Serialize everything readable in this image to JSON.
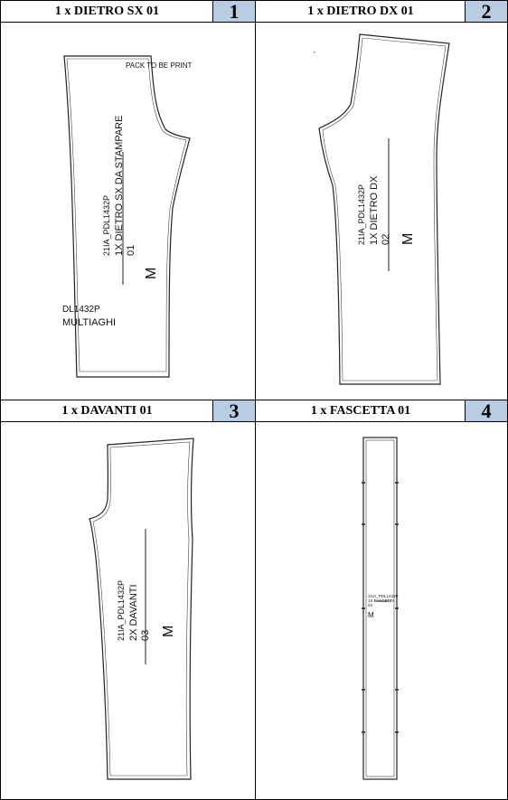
{
  "colors": {
    "header_num_bg": "#b8cce4",
    "line": "#222222",
    "border": "#000000"
  },
  "panels": [
    {
      "title": "1 x DIETRO SX 01",
      "number": "1",
      "note": "PACK TO BE PRINT",
      "label_lines": [
        "21IA_PDL1432P",
        "1X DIETRO SX DA STAMPARE",
        "01"
      ],
      "size": "M",
      "extra_code": "DL1432P",
      "extra_text": "MULTIAGHI"
    },
    {
      "title": "1 x DIETRO DX 01",
      "number": "2",
      "label_lines": [
        "21IA_PDL1432P",
        "1X DIETRO DX",
        "02"
      ],
      "size": "M"
    },
    {
      "title": "1 x DAVANTI 01",
      "number": "3",
      "label_lines": [
        "21IA_PDL1432P",
        "2X DAVANTI",
        "03"
      ],
      "size": "M"
    },
    {
      "title": "1 x FASCETTA 01",
      "number": "4",
      "label_lines": [
        "21IA_PDL1432P",
        "1X FASCETTA",
        "04"
      ],
      "size": "M"
    }
  ]
}
